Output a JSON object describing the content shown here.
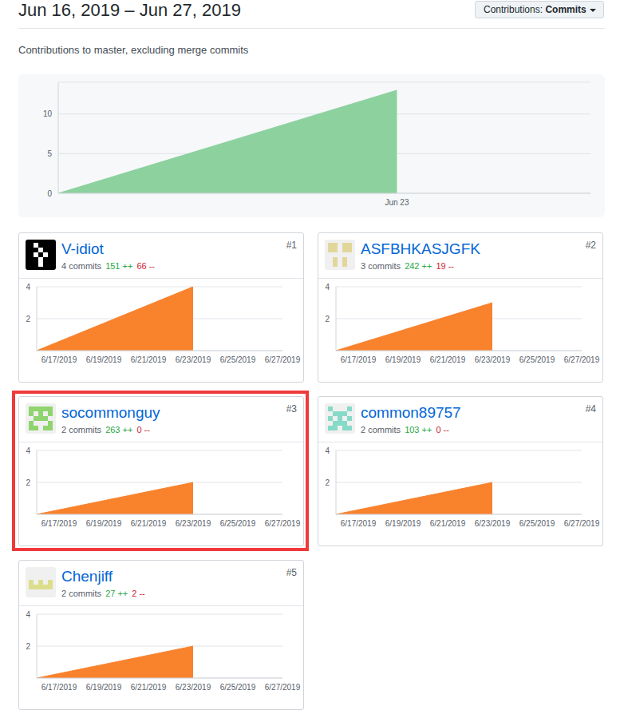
{
  "header": {
    "title": "Jun 16, 2019 – Jun 27, 2019",
    "button": {
      "label": "Contributions:",
      "value": "Commits"
    },
    "subtitle": "Contributions to master, excluding merge commits"
  },
  "chart_data": [
    {
      "type": "area",
      "categories": [
        null,
        null,
        null,
        null,
        null,
        null,
        null,
        "Jun 23",
        null,
        null,
        null,
        null
      ],
      "values": [
        0,
        null,
        null,
        null,
        null,
        null,
        null,
        13,
        null,
        null,
        null,
        null
      ],
      "color": "#8cd19e",
      "ylim": [
        0,
        14
      ],
      "yticks": [
        0,
        5,
        10
      ],
      "grid": true
    },
    {
      "type": "area",
      "title": "V-idiot",
      "rank": "#1",
      "stats": [
        {
          "value": 4,
          "unit": "commits",
          "color": "#586069"
        },
        {
          "value": 151,
          "unit": "++",
          "color": "#28a745"
        },
        {
          "value": 66,
          "unit": "--",
          "color": "#cb2431"
        }
      ],
      "categories": [
        null,
        "6/17/2019",
        null,
        "6/19/2019",
        null,
        "6/21/2019",
        null,
        "6/23/2019",
        null,
        "6/25/2019",
        null,
        "6/27/2019"
      ],
      "values": [
        0,
        null,
        null,
        null,
        null,
        null,
        null,
        4,
        null,
        null,
        null,
        null
      ],
      "color": "#f9822d",
      "ylim": [
        0,
        4
      ],
      "yticks": [
        2,
        4
      ],
      "grid": true
    },
    {
      "type": "area",
      "title": "ASFBHKASJGFK",
      "rank": "#2",
      "stats": [
        {
          "value": 3,
          "unit": "commits",
          "color": "#586069"
        },
        {
          "value": 242,
          "unit": "++",
          "color": "#28a745"
        },
        {
          "value": 19,
          "unit": "--",
          "color": "#cb2431"
        }
      ],
      "categories": [
        null,
        "6/17/2019",
        null,
        "6/19/2019",
        null,
        "6/21/2019",
        null,
        "6/23/2019",
        null,
        "6/25/2019",
        null,
        "6/27/2019"
      ],
      "values": [
        0,
        null,
        null,
        null,
        null,
        null,
        null,
        3,
        null,
        null,
        null,
        null
      ],
      "color": "#f9822d",
      "ylim": [
        0,
        4
      ],
      "yticks": [
        2,
        4
      ],
      "grid": true
    },
    {
      "type": "area",
      "title": "socommonguy",
      "rank": "#3",
      "stats": [
        {
          "value": 2,
          "unit": "commits",
          "color": "#586069"
        },
        {
          "value": 263,
          "unit": "++",
          "color": "#28a745"
        },
        {
          "value": 0,
          "unit": "--",
          "color": "#cb2431"
        }
      ],
      "categories": [
        null,
        "6/17/2019",
        null,
        "6/19/2019",
        null,
        "6/21/2019",
        null,
        "6/23/2019",
        null,
        "6/25/2019",
        null,
        "6/27/2019"
      ],
      "values": [
        0,
        null,
        null,
        null,
        null,
        null,
        null,
        2,
        null,
        null,
        null,
        null
      ],
      "color": "#f9822d",
      "ylim": [
        0,
        4
      ],
      "yticks": [
        2,
        4
      ],
      "grid": true
    },
    {
      "type": "area",
      "title": "common89757",
      "rank": "#4",
      "stats": [
        {
          "value": 2,
          "unit": "commits",
          "color": "#586069"
        },
        {
          "value": 103,
          "unit": "++",
          "color": "#28a745"
        },
        {
          "value": 0,
          "unit": "--",
          "color": "#cb2431"
        }
      ],
      "categories": [
        null,
        "6/17/2019",
        null,
        "6/19/2019",
        null,
        "6/21/2019",
        null,
        "6/23/2019",
        null,
        "6/25/2019",
        null,
        "6/27/2019"
      ],
      "values": [
        0,
        null,
        null,
        null,
        null,
        null,
        null,
        2,
        null,
        null,
        null,
        null
      ],
      "color": "#f9822d",
      "ylim": [
        0,
        4
      ],
      "yticks": [
        2,
        4
      ],
      "grid": true
    },
    {
      "type": "area",
      "title": "Chenjiff",
      "rank": "#5",
      "stats": [
        {
          "value": 2,
          "unit": "commits",
          "color": "#586069"
        },
        {
          "value": 27,
          "unit": "++",
          "color": "#28a745"
        },
        {
          "value": 2,
          "unit": "--",
          "color": "#cb2431"
        }
      ],
      "categories": [
        null,
        "6/17/2019",
        null,
        "6/19/2019",
        null,
        "6/21/2019",
        null,
        "6/23/2019",
        null,
        "6/25/2019",
        null,
        "6/27/2019"
      ],
      "values": [
        0,
        null,
        null,
        null,
        null,
        null,
        null,
        2,
        null,
        null,
        null,
        null
      ],
      "color": "#f9822d",
      "ylim": [
        0,
        4
      ],
      "yticks": [
        2,
        4
      ],
      "grid": true
    }
  ]
}
